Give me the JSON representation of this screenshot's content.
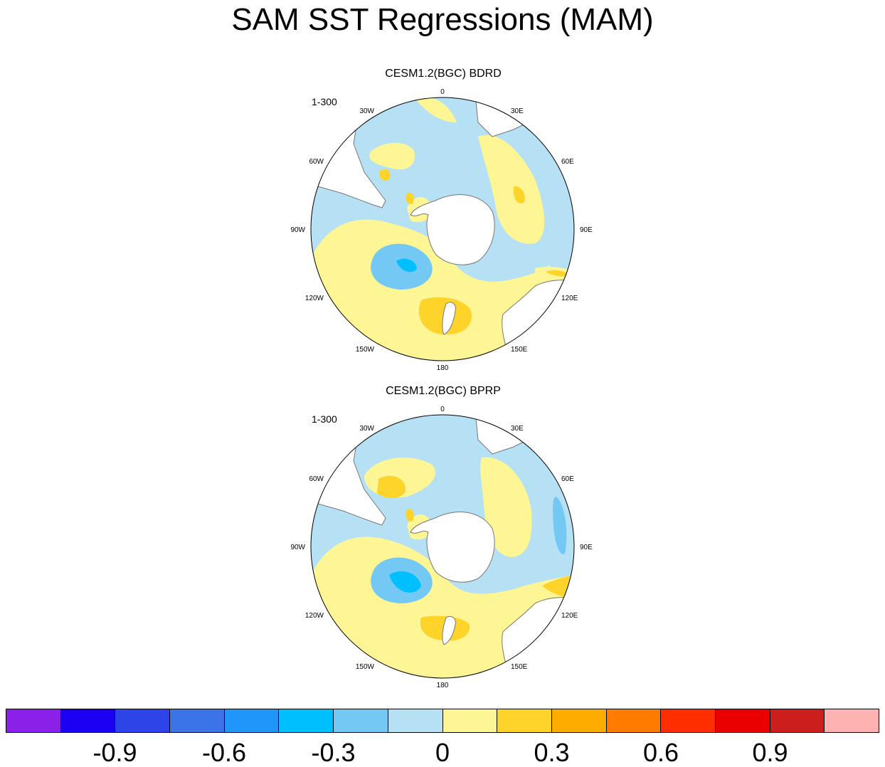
{
  "title": "SAM SST Regressions (MAM)",
  "panels": [
    {
      "title": "CESM1.2(BGC) BDRD",
      "run": "1-300"
    },
    {
      "title": "CESM1.2(BGC) BPRP",
      "run": "1-300"
    }
  ],
  "lon_labels": {
    "l0": "0",
    "l30e": "30E",
    "l60e": "60E",
    "l90e": "90E",
    "l120e": "120E",
    "l150e": "150E",
    "l180": "180",
    "l150w": "150W",
    "l120w": "120W",
    "l90w": "90W",
    "l60w": "60W",
    "l30w": "30W"
  },
  "colorbar": {
    "colors": [
      "#8b20e8",
      "#1b00f4",
      "#2c44e8",
      "#3a74e8",
      "#1e96fa",
      "#00bfff",
      "#74c8f4",
      "#b6e0f3",
      "#fef695",
      "#fed32a",
      "#fead00",
      "#ff7c00",
      "#ff2e00",
      "#eb0000",
      "#cd1e1e",
      "#feb2b2"
    ],
    "labels": [
      "-0.9",
      "-0.6",
      "-0.3",
      "0",
      "0.3",
      "0.6",
      "0.9"
    ]
  },
  "palette": {
    "ocean_neg1": "#b6e0f3",
    "ocean_neg2": "#74c8f4",
    "ocean_neg3": "#00bfff",
    "pos1": "#fef695",
    "pos2": "#fed32a",
    "land": "#ffffff"
  }
}
